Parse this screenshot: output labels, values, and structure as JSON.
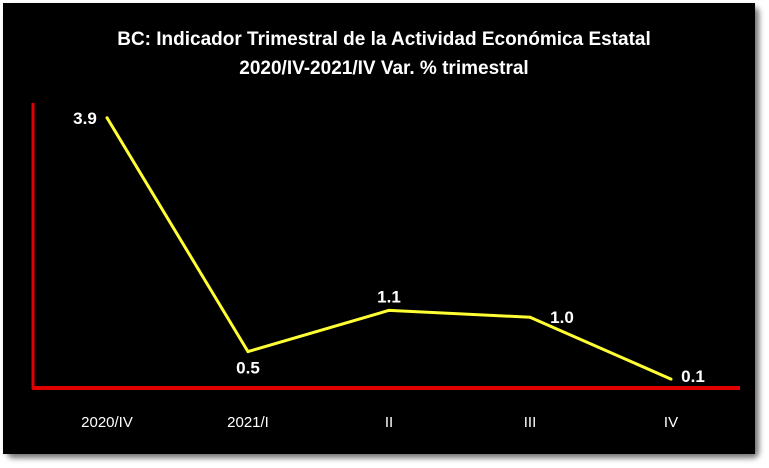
{
  "chart_data": {
    "type": "line",
    "title": "BC: Indicador Trimestral de la Actividad Económica Estatal",
    "subtitle": "2020/IV-2021/IV Var. % trimestral",
    "categories": [
      "2020/IV",
      "2021/I",
      "II",
      "III",
      "IV"
    ],
    "values": [
      3.9,
      0.5,
      1.1,
      1.0,
      0.1
    ],
    "value_labels": [
      "3.9",
      "0.5",
      "1.1",
      "1.0",
      "0.1"
    ],
    "ylim": [
      0,
      4.1
    ],
    "grid": false,
    "legend": "none",
    "colors": {
      "background": "#000000",
      "line": "#ffff33",
      "axis": "#e00000",
      "text": "#ffffff"
    }
  }
}
